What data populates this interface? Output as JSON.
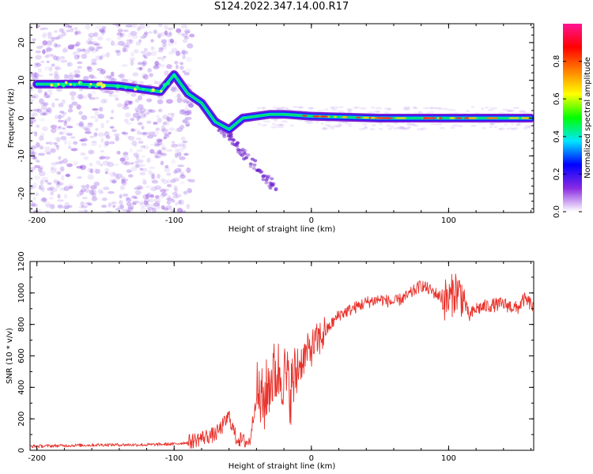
{
  "title": "S124.2022.347.14.00.R17",
  "chart_data": [
    {
      "type": "heatmap",
      "xlabel": "Height of straight line (km)",
      "ylabel": "Frequency (Hz)",
      "xlim": [
        -205,
        162
      ],
      "ylim": [
        -25,
        25
      ],
      "x_ticks": [
        -200,
        -100,
        0,
        100
      ],
      "y_ticks": [
        20,
        10,
        0,
        -10,
        -20
      ],
      "colorbar": {
        "label": "Normalized spectral amplitude",
        "range": [
          0,
          1
        ],
        "ticks": [
          "0.0",
          "0.2",
          "0.4",
          "0.6",
          "0.8"
        ],
        "colors": [
          "#ffffff",
          "#8a2be2",
          "#0000ff",
          "#00e5ff",
          "#00ff00",
          "#ffff00",
          "#ff8000",
          "#ff0000",
          "#ff1493"
        ]
      },
      "ridge": [
        {
          "x": -200,
          "y": 9
        },
        {
          "x": -170,
          "y": 9
        },
        {
          "x": -140,
          "y": 8.5
        },
        {
          "x": -110,
          "y": 7
        },
        {
          "x": -100,
          "y": 11.5
        },
        {
          "x": -90,
          "y": 6.5
        },
        {
          "x": -80,
          "y": 4
        },
        {
          "x": -70,
          "y": -1
        },
        {
          "x": -60,
          "y": -3
        },
        {
          "x": -50,
          "y": 0
        },
        {
          "x": -40,
          "y": 0.5
        },
        {
          "x": -30,
          "y": 1
        },
        {
          "x": -20,
          "y": 1
        },
        {
          "x": 0,
          "y": 0.5
        },
        {
          "x": 50,
          "y": 0
        },
        {
          "x": 100,
          "y": 0
        },
        {
          "x": 160,
          "y": 0
        }
      ]
    },
    {
      "type": "line",
      "xlabel": "Height of straight line (km)",
      "ylabel": "SNR (10 * v/v)",
      "xlim": [
        -205,
        162
      ],
      "ylim": [
        0,
        1200
      ],
      "x_ticks": [
        -200,
        -100,
        0,
        100
      ],
      "y_ticks": [
        0,
        200,
        400,
        600,
        800,
        1000,
        1200
      ],
      "color": "#e8312a",
      "series": [
        {
          "x": [
            -205,
            -180,
            -150,
            -120,
            -100,
            -90,
            -80,
            -70,
            -65,
            -60,
            -55,
            -50,
            -45,
            -40,
            -35,
            -30,
            -25,
            -20,
            -15,
            -10,
            -5,
            0,
            10,
            20,
            30,
            40,
            50,
            60,
            70,
            80,
            90,
            95,
            100,
            105,
            110,
            115,
            120,
            130,
            140,
            150,
            155,
            160,
            162
          ],
          "y": [
            25,
            30,
            35,
            35,
            40,
            50,
            80,
            100,
            150,
            220,
            80,
            60,
            50,
            350,
            300,
            450,
            500,
            480,
            380,
            520,
            600,
            650,
            750,
            860,
            900,
            940,
            960,
            940,
            980,
            1050,
            1000,
            970,
            950,
            1020,
            980,
            850,
            900,
            920,
            930,
            900,
            960,
            930,
            900
          ]
        }
      ]
    }
  ]
}
